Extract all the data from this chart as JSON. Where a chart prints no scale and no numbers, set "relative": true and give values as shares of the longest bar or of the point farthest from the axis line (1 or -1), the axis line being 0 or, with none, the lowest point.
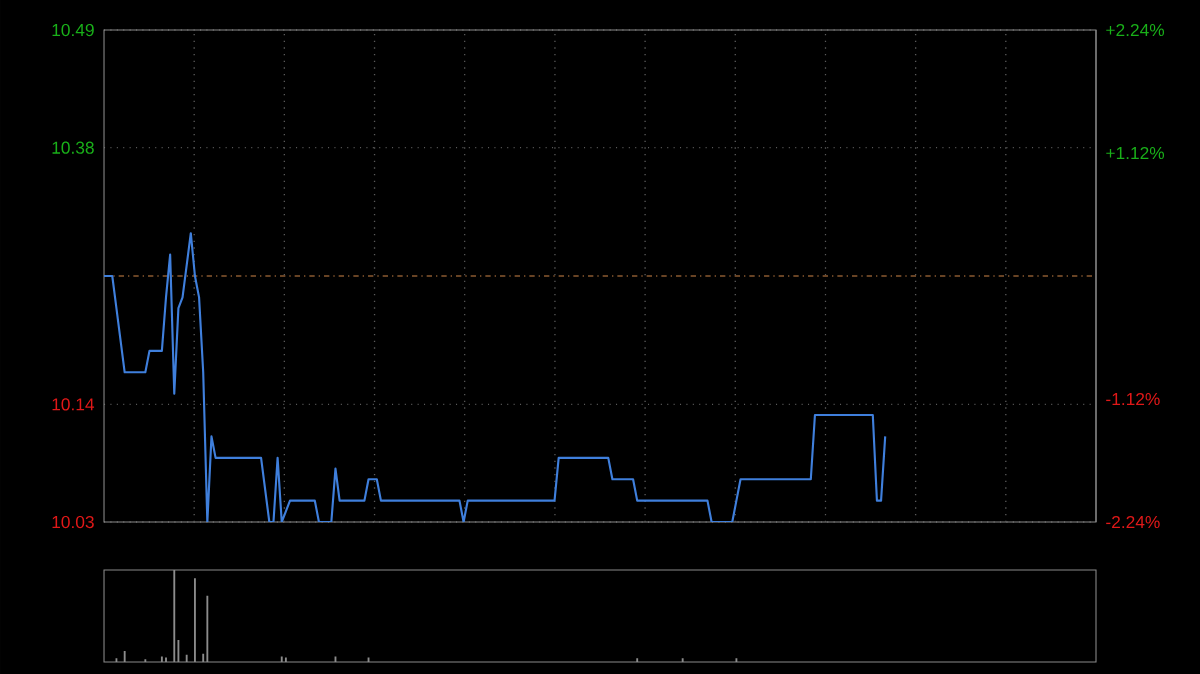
{
  "chart_data": [
    {
      "type": "line",
      "categories": [
        null,
        null,
        null,
        null,
        null,
        null,
        null,
        null,
        null,
        null,
        null,
        null,
        null,
        null,
        null,
        null,
        null,
        null,
        null,
        null,
        null,
        null,
        null,
        null,
        null,
        null,
        null,
        null,
        null,
        null,
        null,
        null,
        null,
        null,
        null,
        null,
        null,
        null,
        null,
        null,
        null,
        null,
        null,
        null,
        null,
        null,
        null,
        null,
        null,
        null,
        null,
        null,
        null,
        null,
        null,
        null,
        null,
        null,
        null,
        null,
        null,
        null,
        null,
        null,
        null,
        null,
        null,
        null,
        null,
        null,
        null,
        null,
        null,
        null,
        null,
        null,
        null,
        null,
        null,
        null,
        null,
        null,
        null,
        null,
        null,
        null,
        null,
        null,
        null,
        null,
        null,
        null,
        null,
        null,
        null,
        null,
        null,
        null,
        null,
        null,
        null,
        null,
        null,
        null,
        null,
        null,
        null,
        null,
        null,
        null,
        null,
        null,
        null,
        null,
        null,
        null,
        null,
        null,
        null,
        null,
        null,
        null,
        null,
        null,
        null,
        null,
        null,
        null,
        null,
        null,
        null,
        null,
        null,
        null,
        null,
        null,
        null,
        null,
        null,
        null,
        null,
        null,
        null,
        null,
        null,
        null,
        null,
        null,
        null,
        null,
        null,
        null,
        null,
        null,
        null,
        null,
        null,
        null,
        null,
        null,
        null,
        null,
        null,
        null,
        null,
        null,
        null,
        null,
        null,
        null,
        null,
        null,
        null,
        null,
        null,
        null,
        null,
        null,
        null,
        null,
        null,
        null,
        null,
        null,
        null,
        null,
        null,
        null,
        null,
        null,
        null,
        null,
        null,
        null,
        null,
        null,
        null,
        null,
        null,
        null,
        null,
        null,
        null,
        null,
        null,
        null,
        null,
        null,
        null,
        null,
        null,
        null,
        null,
        null,
        null,
        null,
        null,
        null,
        null,
        null,
        null,
        null,
        null,
        null,
        null,
        null,
        null,
        null,
        null,
        null,
        null,
        null,
        null,
        null,
        null,
        null,
        null,
        null,
        null,
        null,
        null
      ],
      "values": [
        10.26,
        10.26,
        10.26,
        10.23,
        10.2,
        10.17,
        10.17,
        10.17,
        10.17,
        10.17,
        10.17,
        10.19,
        10.19,
        10.19,
        10.19,
        10.24,
        10.28,
        10.15,
        10.23,
        10.24,
        10.27,
        10.3,
        10.26,
        10.24,
        10.17,
        10.03,
        10.11,
        10.09,
        10.09,
        10.09,
        10.09,
        10.09,
        10.09,
        10.09,
        10.09,
        10.09,
        10.09,
        10.09,
        10.09,
        10.06,
        10.03,
        10.03,
        10.09,
        10.03,
        10.04,
        10.05,
        10.05,
        10.05,
        10.05,
        10.05,
        10.05,
        10.05,
        10.03,
        10.03,
        10.03,
        10.03,
        10.08,
        10.05,
        10.05,
        10.05,
        10.05,
        10.05,
        10.05,
        10.05,
        10.07,
        10.07,
        10.07,
        10.05,
        10.05,
        10.05,
        10.05,
        10.05,
        10.05,
        10.05,
        10.05,
        10.05,
        10.05,
        10.05,
        10.05,
        10.05,
        10.05,
        10.05,
        10.05,
        10.05,
        10.05,
        10.05,
        10.05,
        10.03,
        10.05,
        10.05,
        10.05,
        10.05,
        10.05,
        10.05,
        10.05,
        10.05,
        10.05,
        10.05,
        10.05,
        10.05,
        10.05,
        10.05,
        10.05,
        10.05,
        10.05,
        10.05,
        10.05,
        10.05,
        10.05,
        10.05,
        10.09,
        10.09,
        10.09,
        10.09,
        10.09,
        10.09,
        10.09,
        10.09,
        10.09,
        10.09,
        10.09,
        10.09,
        10.09,
        10.07,
        10.07,
        10.07,
        10.07,
        10.07,
        10.07,
        10.05,
        10.05,
        10.05,
        10.05,
        10.05,
        10.05,
        10.05,
        10.05,
        10.05,
        10.05,
        10.05,
        10.05,
        10.05,
        10.05,
        10.05,
        10.05,
        10.05,
        10.05,
        10.03,
        10.03,
        10.03,
        10.03,
        10.03,
        10.03,
        10.05,
        10.07,
        10.07,
        10.07,
        10.07,
        10.07,
        10.07,
        10.07,
        10.07,
        10.07,
        10.07,
        10.07,
        10.07,
        10.07,
        10.07,
        10.07,
        10.07,
        10.07,
        10.07,
        10.13,
        10.13,
        10.13,
        10.13,
        10.13,
        10.13,
        10.13,
        10.13,
        10.13,
        10.13,
        10.13,
        10.13,
        10.13,
        10.13,
        10.13,
        10.05,
        10.05,
        10.11,
        null,
        null,
        null,
        null,
        null,
        null,
        null,
        null,
        null,
        null,
        null,
        null,
        null,
        null,
        null,
        null,
        null,
        null,
        null,
        null,
        null,
        null,
        null,
        null,
        null,
        null,
        null,
        null,
        null,
        null,
        null,
        null,
        null,
        null,
        null,
        null,
        null,
        null,
        null,
        null,
        null,
        null,
        null,
        null,
        null,
        null,
        null,
        null,
        null,
        null,
        null
      ],
      "color": "#3f7fdc",
      "marker": "none",
      "ylim": [
        10.03,
        10.49
      ],
      "yticks": [
        10.03,
        10.14,
        10.38,
        10.49
      ],
      "y2lim": [
        -2.24,
        2.24
      ],
      "y2ticks": [
        {
          "value": -2.24,
          "label": "-2.24%"
        },
        {
          "value": -1.12,
          "label": "-1.12%"
        },
        {
          "value": 1.12,
          "label": "+1.12%"
        },
        {
          "value": 2.24,
          "label": "+2.24%"
        }
      ],
      "ref_lines": [
        {
          "axis": "y",
          "value": 10.26,
          "color": "#8a5a30",
          "line_style": "dashed"
        }
      ],
      "grid": true,
      "tick_labels": "y"
    },
    {
      "type": "bar",
      "relative": true,
      "color": "#8c8c8c",
      "categories": [
        null,
        null,
        null,
        null,
        null,
        null,
        null,
        null,
        null,
        null,
        null,
        null,
        null,
        null,
        null,
        null,
        null,
        null,
        null,
        null,
        null,
        null,
        null,
        null,
        null,
        null,
        null,
        null,
        null,
        null,
        null,
        null,
        null,
        null,
        null,
        null,
        null,
        null,
        null,
        null,
        null,
        null,
        null,
        null,
        null,
        null,
        null,
        null,
        null,
        null,
        null,
        null,
        null,
        null,
        null,
        null,
        null,
        null,
        null,
        null,
        null,
        null,
        null,
        null,
        null,
        null,
        null,
        null,
        null,
        null,
        null,
        null,
        null,
        null,
        null,
        null,
        null,
        null,
        null,
        null,
        null,
        null,
        null,
        null,
        null,
        null,
        null,
        null,
        null,
        null,
        null,
        null,
        null,
        null,
        null,
        null,
        null,
        null,
        null,
        null,
        null,
        null,
        null,
        null,
        null,
        null,
        null,
        null,
        null,
        null,
        null,
        null,
        null,
        null,
        null,
        null,
        null,
        null,
        null,
        null,
        null,
        null,
        null,
        null,
        null,
        null,
        null,
        null,
        null,
        null,
        null,
        null,
        null,
        null,
        null,
        null,
        null,
        null,
        null,
        null,
        null,
        null,
        null,
        null,
        null,
        null,
        null,
        null,
        null,
        null,
        null,
        null,
        null,
        null,
        null,
        null,
        null,
        null,
        null,
        null,
        null,
        null,
        null,
        null,
        null,
        null,
        null,
        null,
        null,
        null,
        null,
        null,
        null,
        null,
        null,
        null,
        null,
        null,
        null,
        null,
        null,
        null,
        null,
        null,
        null,
        null,
        null,
        null,
        null,
        null,
        null,
        null,
        null,
        null,
        null,
        null,
        null,
        null,
        null,
        null,
        null,
        null,
        null,
        null,
        null,
        null,
        null,
        null,
        null,
        null,
        null,
        null,
        null,
        null,
        null,
        null,
        null,
        null,
        null,
        null,
        null,
        null,
        null,
        null,
        null,
        null,
        null,
        null,
        null,
        null,
        null,
        null,
        null,
        null,
        null,
        null,
        null,
        null,
        null,
        null,
        null
      ],
      "values": [
        null,
        null,
        null,
        0.04,
        null,
        0.12,
        null,
        null,
        null,
        null,
        0.03,
        null,
        null,
        null,
        0.06,
        0.05,
        null,
        1.0,
        0.24,
        null,
        0.08,
        null,
        0.91,
        null,
        0.09,
        0.72,
        null,
        null,
        null,
        null,
        null,
        null,
        null,
        null,
        null,
        null,
        null,
        null,
        null,
        null,
        null,
        null,
        null,
        0.06,
        0.05,
        null,
        null,
        null,
        null,
        null,
        null,
        null,
        null,
        null,
        null,
        null,
        0.06,
        null,
        null,
        null,
        null,
        null,
        null,
        null,
        0.05,
        null,
        null,
        null,
        null,
        null,
        null,
        null,
        null,
        null,
        null,
        null,
        null,
        null,
        null,
        null,
        null,
        null,
        null,
        null,
        null,
        null,
        null,
        null,
        null,
        null,
        null,
        null,
        null,
        null,
        null,
        null,
        null,
        null,
        null,
        null,
        null,
        null,
        null,
        null,
        null,
        null,
        null,
        null,
        null,
        null,
        null,
        null,
        null,
        null,
        null,
        null,
        null,
        null,
        null,
        null,
        null,
        null,
        null,
        null,
        null,
        null,
        null,
        null,
        null,
        0.04,
        null,
        null,
        null,
        null,
        null,
        null,
        null,
        null,
        null,
        null,
        0.04,
        null,
        null,
        null,
        null,
        null,
        null,
        null,
        null,
        null,
        null,
        null,
        null,
        0.04,
        null,
        null,
        null,
        null,
        null,
        null,
        null,
        null,
        null,
        null,
        null,
        null,
        null,
        null,
        null,
        null,
        null,
        null,
        null,
        null,
        null,
        null,
        null,
        null,
        null,
        null,
        null,
        null,
        null,
        null,
        null,
        null,
        null,
        null,
        null,
        null,
        null,
        null,
        null,
        null,
        null,
        null,
        null,
        null,
        null,
        null,
        null,
        null,
        null,
        null,
        null,
        null,
        null,
        null,
        null,
        null,
        null,
        null,
        null,
        null,
        null,
        null,
        null,
        null,
        null,
        null,
        null,
        null,
        null,
        null,
        null,
        null,
        null,
        null,
        null,
        null,
        null,
        null,
        null,
        null,
        null,
        null,
        null,
        null,
        null,
        null,
        null
      ]
    }
  ]
}
